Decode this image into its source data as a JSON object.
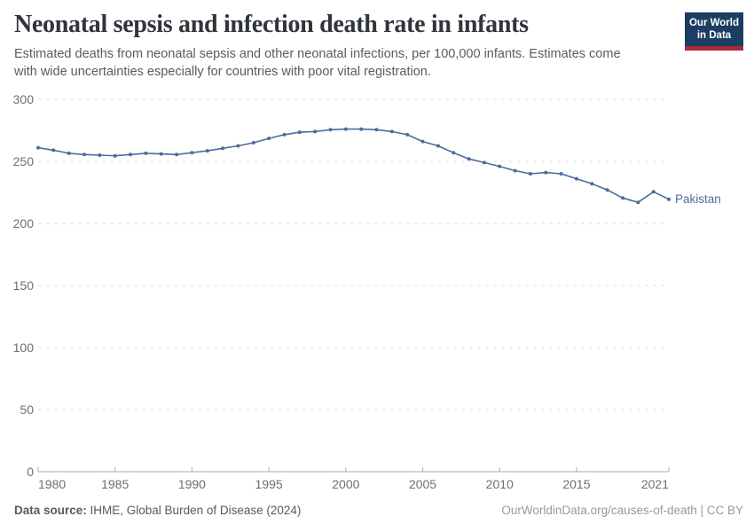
{
  "header": {
    "title": "Neonatal sepsis and infection death rate in infants",
    "logo_line1": "Our World",
    "logo_line2": "in Data"
  },
  "subtitle": {
    "line1": "Estimated deaths from neonatal sepsis and other neonatal infections, per 100,000 infants. Estimates come",
    "line2": "with wide uncertainties especially for countries with poor vital registration."
  },
  "footer": {
    "datasource_label": "Data source:",
    "datasource_value": " IHME, Global Burden of Disease (2024)",
    "credit": "OurWorldinData.org/causes-of-death | CC BY"
  },
  "colors": {
    "line": "#4c6b9e",
    "logo_bg": "#1d3d63",
    "logo_stripe": "#a52a3a",
    "grid": "#e0e0e0",
    "axis": "#a8a8a8",
    "tick_label": "#6e6e6e",
    "title": "#30343b",
    "subtitle": "#5b5b5b",
    "footer_left": "#5a5a5a",
    "footer_right": "#999999"
  },
  "chart_data": {
    "type": "line",
    "title": "Neonatal sepsis and infection death rate in infants",
    "unit": "deaths per 100,000 infants",
    "xlim": [
      1980,
      2021
    ],
    "ylim": [
      0,
      300
    ],
    "xticks": [
      1980,
      1985,
      1990,
      1995,
      2000,
      2005,
      2010,
      2015,
      2021
    ],
    "yticks": [
      0,
      50,
      100,
      150,
      200,
      250,
      300
    ],
    "grid": "horizontal-dashed",
    "legend_position": "end-of-line-label",
    "series": [
      {
        "name": "Pakistan",
        "color": "#4c6b9e",
        "x": [
          1980,
          1981,
          1982,
          1983,
          1984,
          1985,
          1986,
          1987,
          1988,
          1989,
          1990,
          1991,
          1992,
          1993,
          1994,
          1995,
          1996,
          1997,
          1998,
          1999,
          2000,
          2001,
          2002,
          2003,
          2004,
          2005,
          2006,
          2007,
          2008,
          2009,
          2010,
          2011,
          2012,
          2013,
          2014,
          2015,
          2016,
          2017,
          2018,
          2019,
          2020,
          2021
        ],
        "values": [
          261,
          259,
          256.5,
          255.5,
          255,
          254.5,
          255.5,
          256.5,
          256,
          255.5,
          257,
          258.5,
          260.5,
          262.5,
          265,
          268.5,
          271.5,
          273.5,
          274,
          275.5,
          276,
          276,
          275.5,
          274,
          271.5,
          266,
          262.5,
          257,
          252,
          249,
          246,
          242.5,
          240,
          241,
          240,
          236,
          232,
          227,
          220.5,
          217,
          225.5,
          219.5
        ]
      }
    ]
  }
}
